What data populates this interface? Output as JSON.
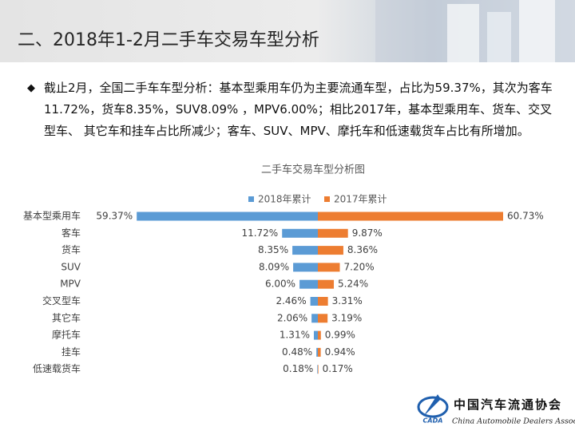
{
  "header": {
    "title": "二、2018年1-2月二手车交易车型分析"
  },
  "bullet": {
    "text": "截止2月，全国二手车车型分析：基本型乘用车仍为主要流通车型，占比为59.37%，其次为客车11.72%，货车8.35%，SUV8.09% ，MPV6.00%；相比2017年，基本型乘用车、货车、交叉型车、 其它车和挂车占比所减少；客车、SUV、MPV、摩托车和低速载货车占比有所增加。"
  },
  "chart_data": {
    "type": "butterfly_bar",
    "title": "二手车交易车型分析图",
    "categories": [
      "基本型乘用车",
      "客车",
      "货车",
      "SUV",
      "MPV",
      "交叉型车",
      "其它车",
      "摩托车",
      "挂车",
      "低速载货车"
    ],
    "series": [
      {
        "name": "2018年累计",
        "color": "#5b9bd5",
        "values": [
          59.37,
          11.72,
          8.35,
          8.09,
          6.0,
          2.46,
          2.06,
          1.31,
          0.48,
          0.18
        ],
        "value_labels": [
          "59.37%",
          "11.72%",
          "8.35%",
          "8.09%",
          "6.00%",
          "2.46%",
          "2.06%",
          "1.31%",
          "0.48%",
          "0.18%"
        ]
      },
      {
        "name": "2017年累计",
        "color": "#ed7d31",
        "values": [
          60.73,
          9.87,
          8.36,
          7.2,
          5.24,
          3.31,
          3.19,
          0.99,
          0.94,
          0.17
        ],
        "value_labels": [
          "60.73%",
          "9.87%",
          "8.36%",
          "7.20%",
          "5.24%",
          "3.31%",
          "3.19%",
          "0.99%",
          "0.94%",
          "0.17%"
        ]
      }
    ],
    "legend": "top"
  },
  "logo": {
    "name": "中国汽车流通协会",
    "english": "China Automobile Dealers Association",
    "mark": "CADA"
  }
}
